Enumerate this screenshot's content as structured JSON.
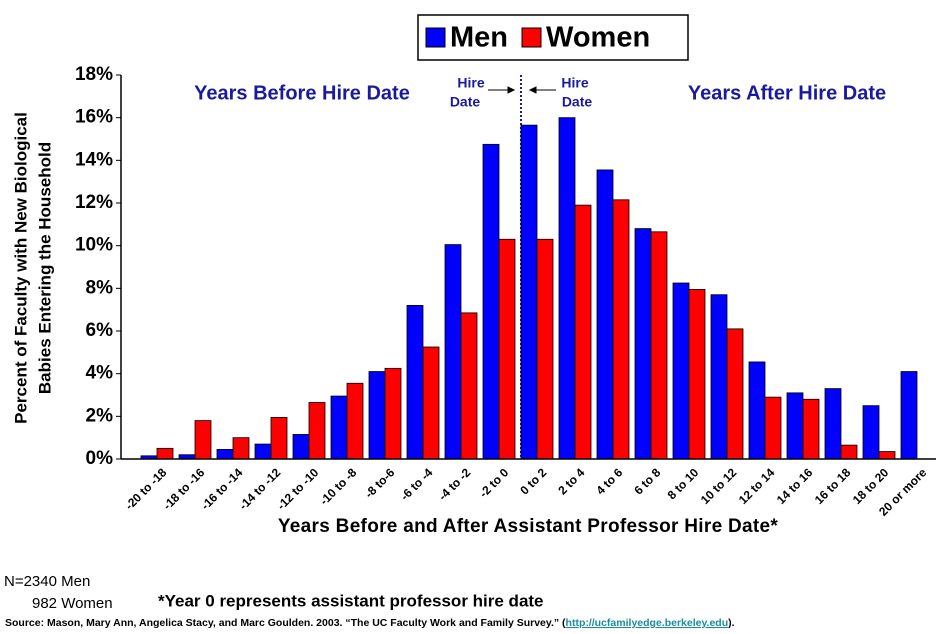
{
  "chart_data": {
    "type": "bar",
    "categories": [
      "-20 to -18",
      "-18 to -16",
      "-16 to -14",
      "-14 to -12",
      "-12 to -10",
      "-10 to -8",
      "-8 to-6",
      "-6 to -4",
      "-4 to -2",
      "-2 to 0",
      "0 to 2",
      "2 to 4",
      "4 to 6",
      "6 to 8",
      "8 to 10",
      "10 to 12",
      "12 to 14",
      "14 to 16",
      "16 to 18",
      "18 to 20",
      "20 or more"
    ],
    "series": [
      {
        "name": "Men",
        "color": "#0000ff",
        "values": [
          0.15,
          0.2,
          0.45,
          0.7,
          1.15,
          2.95,
          4.1,
          7.2,
          10.05,
          14.75,
          15.65,
          16.0,
          13.55,
          10.8,
          8.25,
          7.7,
          4.55,
          3.1,
          3.3,
          2.5,
          4.1
        ]
      },
      {
        "name": "Women",
        "color": "#ff0000",
        "values": [
          0.5,
          1.8,
          1.0,
          1.95,
          2.65,
          3.55,
          4.25,
          5.25,
          6.85,
          10.3,
          10.3,
          11.9,
          12.15,
          10.65,
          7.95,
          6.1,
          2.9,
          2.8,
          0.65,
          0.35,
          null
        ]
      }
    ],
    "ylim": [
      0,
      18
    ],
    "yticks": [
      {
        "value": 0,
        "label": "0%"
      },
      {
        "value": 2,
        "label": "2%"
      },
      {
        "value": 4,
        "label": "4%"
      },
      {
        "value": 6,
        "label": "6%"
      },
      {
        "value": 8,
        "label": "8%"
      },
      {
        "value": 10,
        "label": "10%"
      },
      {
        "value": 12,
        "label": "12%"
      },
      {
        "value": 14,
        "label": "14%"
      },
      {
        "value": 16,
        "label": "16%"
      },
      {
        "value": 18,
        "label": "18%"
      }
    ],
    "y_label": [
      "Percent of Faculty with New Biological",
      "Babies Entering the Household"
    ],
    "x_label": "Years Before and After Assistant Professor Hire Date*",
    "legend": "top",
    "annotations": {
      "before": "Years Before Hire Date",
      "after": "Years After Hire Date",
      "hire_left": [
        "Hire",
        "Date"
      ],
      "hire_right": [
        "Hire",
        "Date"
      ]
    },
    "notes": {
      "n_men": "N=2340 Men",
      "n_women": "982 Women",
      "footnote": "*Year 0 represents assistant professor hire date",
      "source": "Source: Mason, Mary Ann, Angelica Stacy, and Marc Goulden.  2003. “The UC Faculty Work and Family Survey.” (",
      "link": "http://ucfamilyedge.berkeley.edu",
      "source_end": ")."
    }
  }
}
